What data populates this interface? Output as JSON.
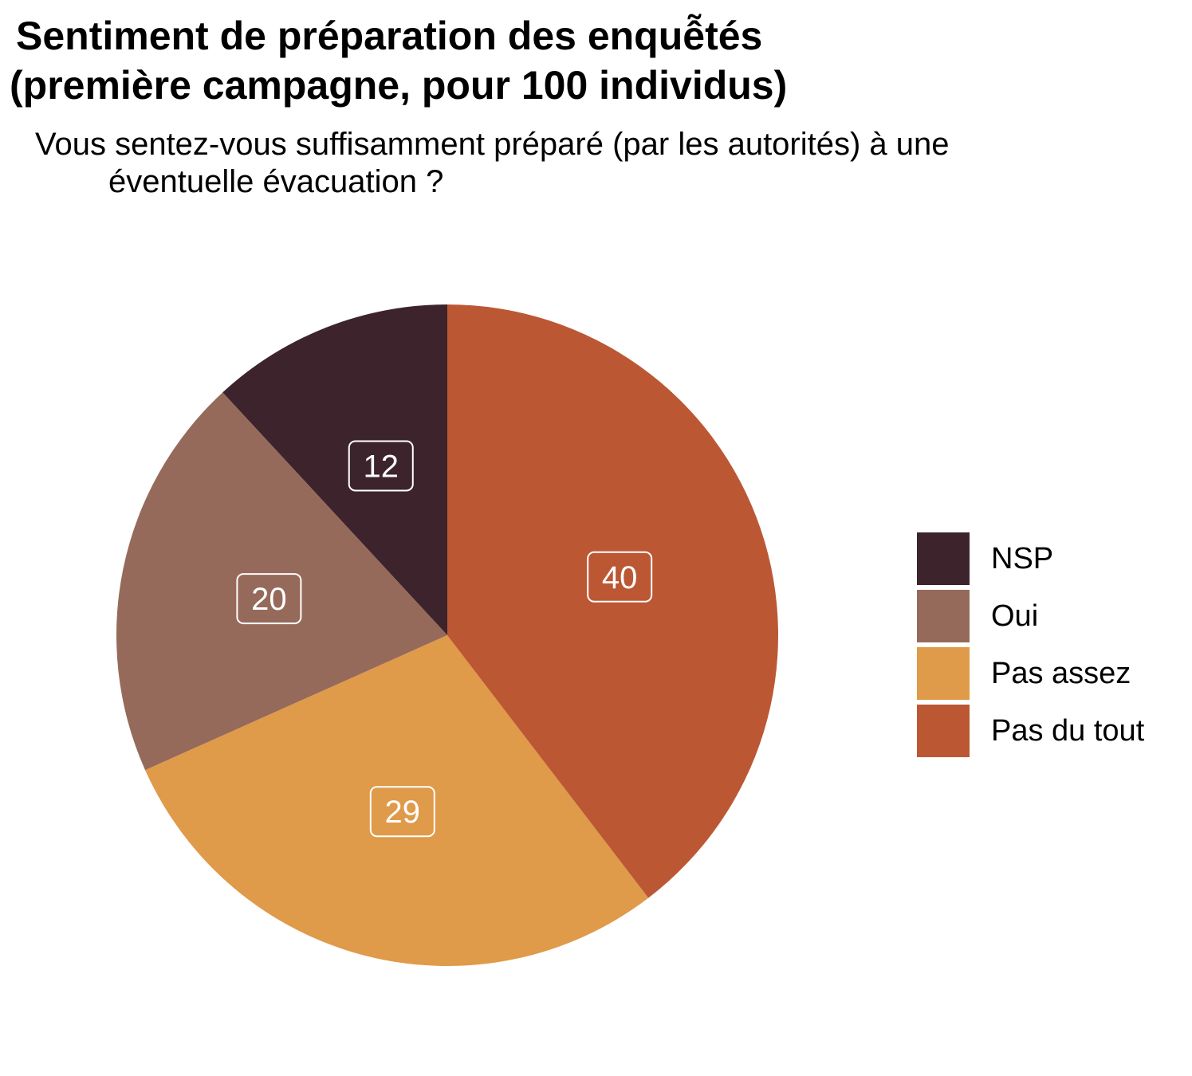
{
  "chart_data": {
    "type": "pie",
    "title_lines": [
      "Sentiment de préparation des enquễtés",
      "(première campagne, pour 100 individus)"
    ],
    "subtitle_lines": [
      "Vous sentez-vous suffisamment préparé (par les autorités) à une",
      "éventuelle évacuation ?"
    ],
    "slices": [
      {
        "label": "NSP",
        "value": 12,
        "color": "#3d242c"
      },
      {
        "label": "Oui",
        "value": 20,
        "color": "#966a5a"
      },
      {
        "label": "Pas assez",
        "value": 29,
        "color": "#df9a4a"
      },
      {
        "label": "Pas du tout",
        "value": 40,
        "color": "#bc5734"
      }
    ],
    "data_labels": true,
    "legend_position": "right"
  }
}
